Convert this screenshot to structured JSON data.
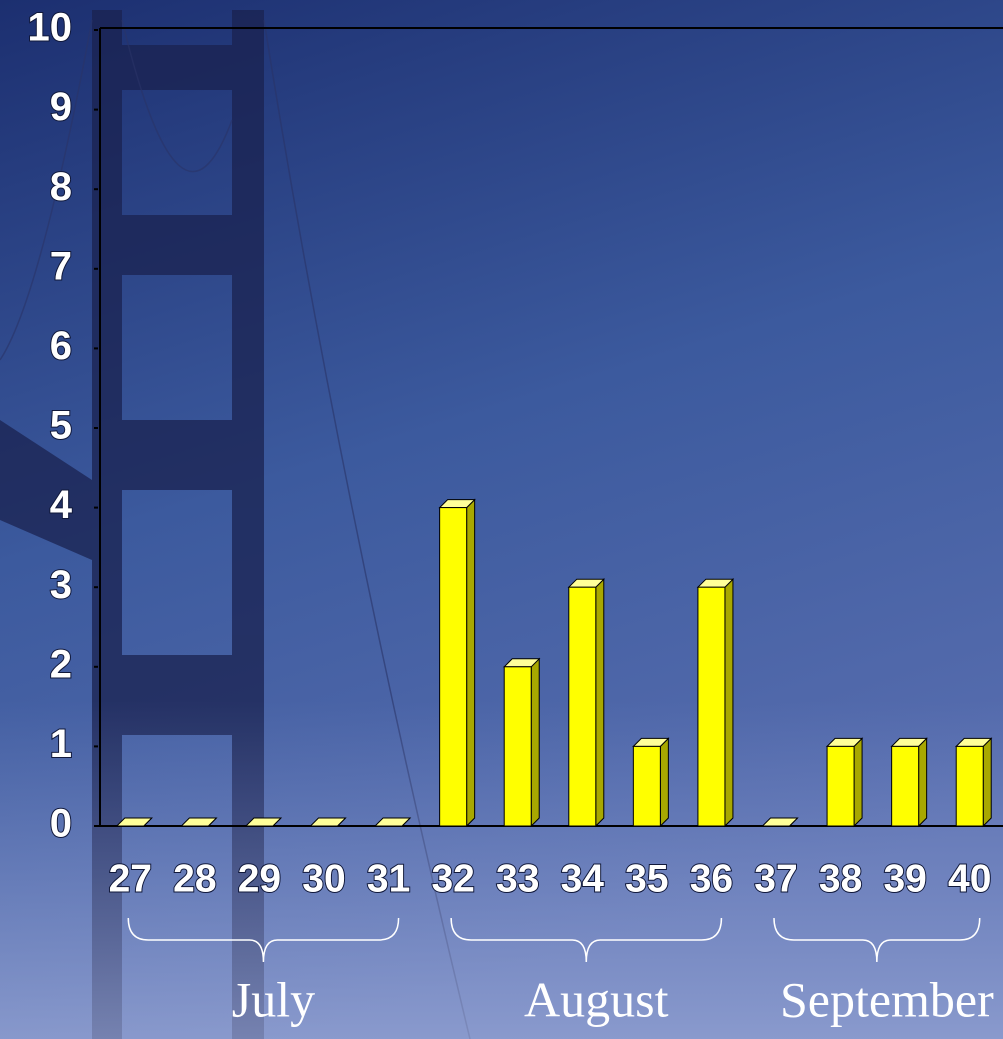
{
  "chart_data": {
    "type": "bar",
    "categories": [
      "27",
      "28",
      "29",
      "30",
      "31",
      "32",
      "33",
      "34",
      "35",
      "36",
      "37",
      "38",
      "39",
      "40"
    ],
    "values": [
      0,
      0,
      0,
      0,
      0,
      4,
      2,
      3,
      1,
      3,
      0,
      1,
      1,
      1
    ],
    "color": "#ffff00",
    "ylim": [
      0,
      10
    ],
    "yticks": [
      0,
      1,
      2,
      3,
      4,
      5,
      6,
      7,
      8,
      9,
      10
    ],
    "groups": [
      {
        "label": "July",
        "size": 5
      },
      {
        "label": "August",
        "size": 5
      },
      {
        "label": "September",
        "size": 4
      }
    ]
  }
}
